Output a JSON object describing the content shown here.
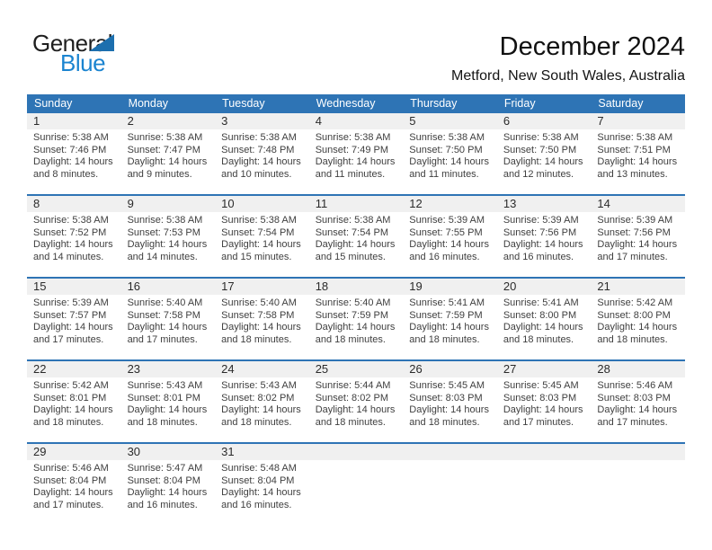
{
  "brand": {
    "name_top": "General",
    "name_bottom": "Blue",
    "flag_icon": "blue-triangle-flag"
  },
  "header": {
    "title": "December 2024",
    "subtitle": "Metford, New South Wales, Australia"
  },
  "colors": {
    "accent_blue": "#2e74b5",
    "header_text": "#ffffff",
    "number_strip_bg": "#f0f0f0",
    "cell_text": "#3f3f3f",
    "logo_text_blue": "#1b84d0",
    "logo_triangle_blue": "#1c6fae"
  },
  "calendar": {
    "day_headers": [
      "Sunday",
      "Monday",
      "Tuesday",
      "Wednesday",
      "Thursday",
      "Friday",
      "Saturday"
    ],
    "weeks": [
      [
        {
          "day": "1",
          "sunrise": "Sunrise: 5:38 AM",
          "sunset": "Sunset: 7:46 PM",
          "daylight": "Daylight: 14 hours and 8 minutes."
        },
        {
          "day": "2",
          "sunrise": "Sunrise: 5:38 AM",
          "sunset": "Sunset: 7:47 PM",
          "daylight": "Daylight: 14 hours and 9 minutes."
        },
        {
          "day": "3",
          "sunrise": "Sunrise: 5:38 AM",
          "sunset": "Sunset: 7:48 PM",
          "daylight": "Daylight: 14 hours and 10 minutes."
        },
        {
          "day": "4",
          "sunrise": "Sunrise: 5:38 AM",
          "sunset": "Sunset: 7:49 PM",
          "daylight": "Daylight: 14 hours and 11 minutes."
        },
        {
          "day": "5",
          "sunrise": "Sunrise: 5:38 AM",
          "sunset": "Sunset: 7:50 PM",
          "daylight": "Daylight: 14 hours and 11 minutes."
        },
        {
          "day": "6",
          "sunrise": "Sunrise: 5:38 AM",
          "sunset": "Sunset: 7:50 PM",
          "daylight": "Daylight: 14 hours and 12 minutes."
        },
        {
          "day": "7",
          "sunrise": "Sunrise: 5:38 AM",
          "sunset": "Sunset: 7:51 PM",
          "daylight": "Daylight: 14 hours and 13 minutes."
        }
      ],
      [
        {
          "day": "8",
          "sunrise": "Sunrise: 5:38 AM",
          "sunset": "Sunset: 7:52 PM",
          "daylight": "Daylight: 14 hours and 14 minutes."
        },
        {
          "day": "9",
          "sunrise": "Sunrise: 5:38 AM",
          "sunset": "Sunset: 7:53 PM",
          "daylight": "Daylight: 14 hours and 14 minutes."
        },
        {
          "day": "10",
          "sunrise": "Sunrise: 5:38 AM",
          "sunset": "Sunset: 7:54 PM",
          "daylight": "Daylight: 14 hours and 15 minutes."
        },
        {
          "day": "11",
          "sunrise": "Sunrise: 5:38 AM",
          "sunset": "Sunset: 7:54 PM",
          "daylight": "Daylight: 14 hours and 15 minutes."
        },
        {
          "day": "12",
          "sunrise": "Sunrise: 5:39 AM",
          "sunset": "Sunset: 7:55 PM",
          "daylight": "Daylight: 14 hours and 16 minutes."
        },
        {
          "day": "13",
          "sunrise": "Sunrise: 5:39 AM",
          "sunset": "Sunset: 7:56 PM",
          "daylight": "Daylight: 14 hours and 16 minutes."
        },
        {
          "day": "14",
          "sunrise": "Sunrise: 5:39 AM",
          "sunset": "Sunset: 7:56 PM",
          "daylight": "Daylight: 14 hours and 17 minutes."
        }
      ],
      [
        {
          "day": "15",
          "sunrise": "Sunrise: 5:39 AM",
          "sunset": "Sunset: 7:57 PM",
          "daylight": "Daylight: 14 hours and 17 minutes."
        },
        {
          "day": "16",
          "sunrise": "Sunrise: 5:40 AM",
          "sunset": "Sunset: 7:58 PM",
          "daylight": "Daylight: 14 hours and 17 minutes."
        },
        {
          "day": "17",
          "sunrise": "Sunrise: 5:40 AM",
          "sunset": "Sunset: 7:58 PM",
          "daylight": "Daylight: 14 hours and 18 minutes."
        },
        {
          "day": "18",
          "sunrise": "Sunrise: 5:40 AM",
          "sunset": "Sunset: 7:59 PM",
          "daylight": "Daylight: 14 hours and 18 minutes."
        },
        {
          "day": "19",
          "sunrise": "Sunrise: 5:41 AM",
          "sunset": "Sunset: 7:59 PM",
          "daylight": "Daylight: 14 hours and 18 minutes."
        },
        {
          "day": "20",
          "sunrise": "Sunrise: 5:41 AM",
          "sunset": "Sunset: 8:00 PM",
          "daylight": "Daylight: 14 hours and 18 minutes."
        },
        {
          "day": "21",
          "sunrise": "Sunrise: 5:42 AM",
          "sunset": "Sunset: 8:00 PM",
          "daylight": "Daylight: 14 hours and 18 minutes."
        }
      ],
      [
        {
          "day": "22",
          "sunrise": "Sunrise: 5:42 AM",
          "sunset": "Sunset: 8:01 PM",
          "daylight": "Daylight: 14 hours and 18 minutes."
        },
        {
          "day": "23",
          "sunrise": "Sunrise: 5:43 AM",
          "sunset": "Sunset: 8:01 PM",
          "daylight": "Daylight: 14 hours and 18 minutes."
        },
        {
          "day": "24",
          "sunrise": "Sunrise: 5:43 AM",
          "sunset": "Sunset: 8:02 PM",
          "daylight": "Daylight: 14 hours and 18 minutes."
        },
        {
          "day": "25",
          "sunrise": "Sunrise: 5:44 AM",
          "sunset": "Sunset: 8:02 PM",
          "daylight": "Daylight: 14 hours and 18 minutes."
        },
        {
          "day": "26",
          "sunrise": "Sunrise: 5:45 AM",
          "sunset": "Sunset: 8:03 PM",
          "daylight": "Daylight: 14 hours and 18 minutes."
        },
        {
          "day": "27",
          "sunrise": "Sunrise: 5:45 AM",
          "sunset": "Sunset: 8:03 PM",
          "daylight": "Daylight: 14 hours and 17 minutes."
        },
        {
          "day": "28",
          "sunrise": "Sunrise: 5:46 AM",
          "sunset": "Sunset: 8:03 PM",
          "daylight": "Daylight: 14 hours and 17 minutes."
        }
      ],
      [
        {
          "day": "29",
          "sunrise": "Sunrise: 5:46 AM",
          "sunset": "Sunset: 8:04 PM",
          "daylight": "Daylight: 14 hours and 17 minutes."
        },
        {
          "day": "30",
          "sunrise": "Sunrise: 5:47 AM",
          "sunset": "Sunset: 8:04 PM",
          "daylight": "Daylight: 14 hours and 16 minutes."
        },
        {
          "day": "31",
          "sunrise": "Sunrise: 5:48 AM",
          "sunset": "Sunset: 8:04 PM",
          "daylight": "Daylight: 14 hours and 16 minutes."
        },
        null,
        null,
        null,
        null
      ]
    ]
  }
}
